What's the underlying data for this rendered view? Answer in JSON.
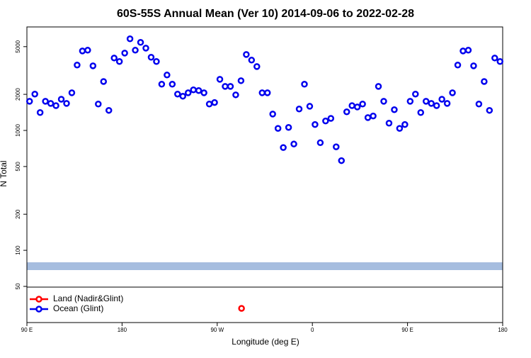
{
  "chart_data": {
    "type": "scatter",
    "title": "60S-55S Annual Mean (Ver 10)   2014-09-06 to 2022-02-28",
    "x_label": "Longitude (deg E)",
    "y_label": "N Total",
    "xlim": [
      90,
      540
    ],
    "xticks": [
      {
        "value": 90,
        "label": "90 E"
      },
      {
        "value": 180,
        "label": "180"
      },
      {
        "value": 270,
        "label": "90 W"
      },
      {
        "value": 360,
        "label": "0"
      },
      {
        "value": 450,
        "label": "90 E"
      },
      {
        "value": 540,
        "label": "180"
      }
    ],
    "ylim": [
      50,
      7300
    ],
    "y_log": true,
    "yticks": [
      50,
      100,
      200,
      500,
      1000,
      2000,
      5000
    ],
    "legend": "bottom-left",
    "series": [
      {
        "name": "Land (Nadir&Glint)",
        "color": "#ff0000",
        "x": [
          293
        ],
        "values": [
          null
        ]
      },
      {
        "name": "Ocean (Glint)",
        "color": "#0000ee",
        "x": [
          92.5,
          97.5,
          102.5,
          107.5,
          112.5,
          117.5,
          122.5,
          127.5,
          132.5,
          137.5,
          142.5,
          147.5,
          152.5,
          157.5,
          162.5,
          167.5,
          172.5,
          177.5,
          182.5,
          187.5,
          192.5,
          197.5,
          202.5,
          207.5,
          212.5,
          217.5,
          222.5,
          227.5,
          232.5,
          237.5,
          242.5,
          247.5,
          252.5,
          257.5,
          262.5,
          267.5,
          272.5,
          277.5,
          282.5,
          287.5,
          292.5,
          297.5,
          302.5,
          307.5,
          312.5,
          317.5,
          322.5,
          327.5,
          332.5,
          337.5,
          342.5,
          347.5,
          352.5,
          357.5,
          362.5,
          367.5,
          372.5,
          377.5,
          382.5,
          387.5,
          392.5,
          397.5,
          402.5,
          407.5,
          412.5,
          417.5,
          422.5,
          427.5,
          432.5,
          437.5,
          442.5,
          447.5,
          452.5,
          457.5,
          462.5,
          467.5,
          472.5,
          477.5,
          482.5,
          487.5,
          492.5,
          497.5,
          502.5,
          507.5,
          512.5,
          517.5,
          522.5,
          527.5,
          532.5,
          537.5
        ],
        "values": [
          1750,
          2010,
          1410,
          1750,
          1680,
          1610,
          1820,
          1680,
          2060,
          3510,
          4600,
          4670,
          3460,
          1660,
          2560,
          1470,
          4020,
          3760,
          4420,
          5810,
          4670,
          5430,
          4860,
          4080,
          3760,
          2430,
          2900,
          2430,
          2010,
          1930,
          2060,
          2180,
          2150,
          2060,
          1660,
          1710,
          2670,
          2330,
          2330,
          1980,
          2600,
          4300,
          3860,
          3410,
          2060,
          2060,
          1370,
          1040,
          720,
          1060,
          770,
          1510,
          2430,
          1590,
          1120,
          790,
          1200,
          1260,
          730,
          560,
          1430,
          1610,
          1570,
          1660,
          1280,
          1320,
          2330,
          1750,
          1150,
          1490,
          1040,
          1120,
          1750,
          2010,
          1410,
          1750,
          1680,
          1610,
          1820,
          1680,
          2060,
          3510,
          4600,
          4670,
          3460,
          1660,
          2560,
          1470,
          4020,
          3760
        ]
      }
    ]
  }
}
